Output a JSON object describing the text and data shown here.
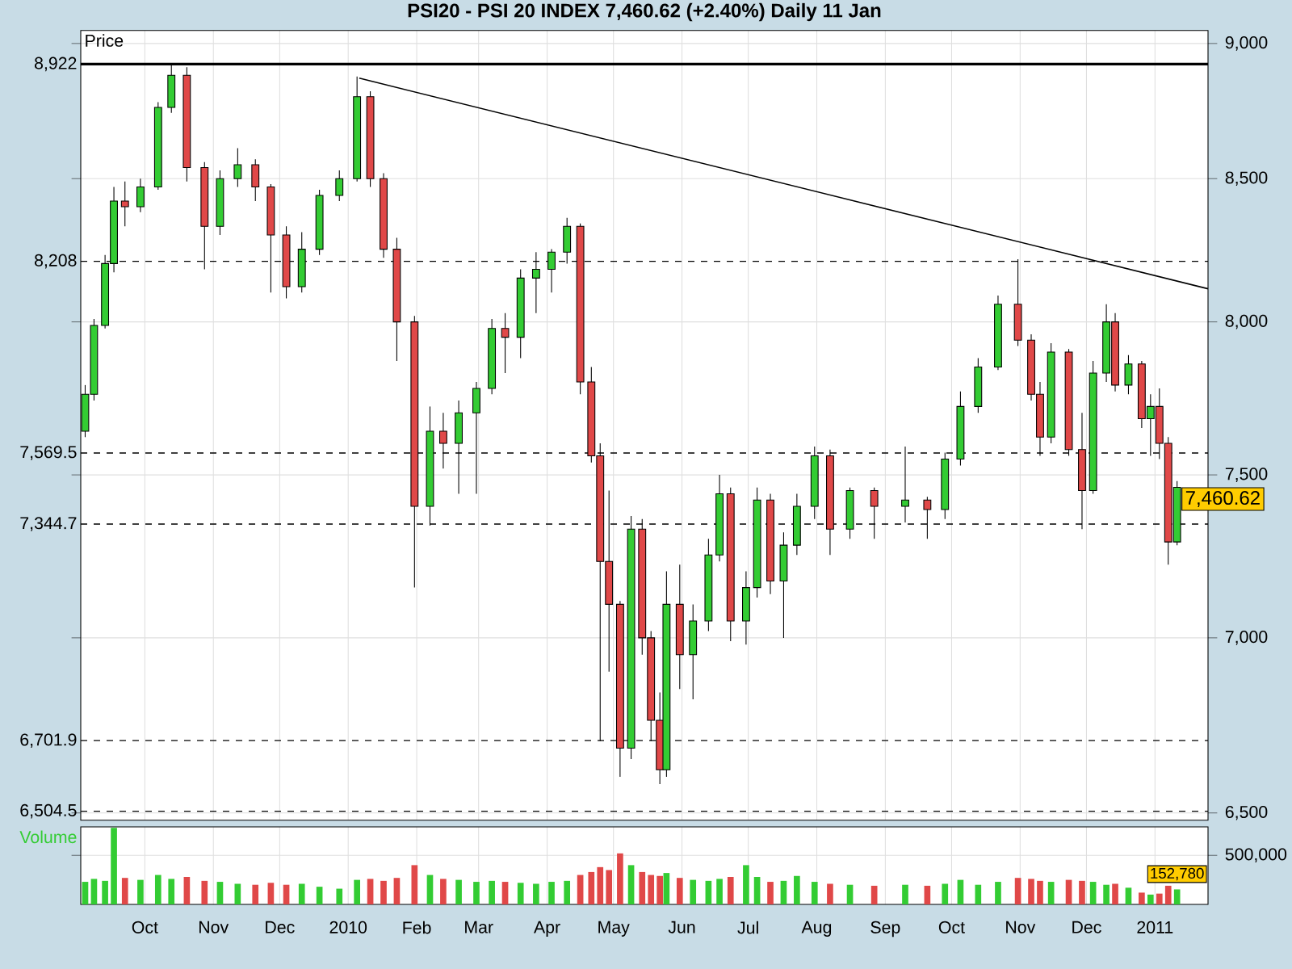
{
  "chart_data": [
    {
      "type": "candlestick",
      "title": "PSI20 - PSI 20 INDEX    7,460.62 (+2.40%)    Daily  11 Jan",
      "ylabel": "Price",
      "x": [
        "2009-09-04",
        "2009-09-08",
        "2009-09-13",
        "2009-09-17",
        "2009-09-22",
        "2009-09-29",
        "2009-10-07",
        "2009-10-13",
        "2009-10-20",
        "2009-10-28",
        "2009-11-04",
        "2009-11-12",
        "2009-11-20",
        "2009-11-27",
        "2009-12-04",
        "2009-12-11",
        "2009-12-19",
        "2009-12-28",
        "2010-01-05",
        "2010-01-11",
        "2010-01-17",
        "2010-01-23",
        "2010-01-31",
        "2010-02-07",
        "2010-02-13",
        "2010-02-20",
        "2010-02-28",
        "2010-03-07",
        "2010-03-13",
        "2010-03-20",
        "2010-03-27",
        "2010-04-03",
        "2010-04-10",
        "2010-04-16",
        "2010-04-21",
        "2010-04-25",
        "2010-04-29",
        "2010-05-04",
        "2010-05-09",
        "2010-05-14",
        "2010-05-18",
        "2010-05-22",
        "2010-05-25",
        "2010-05-31",
        "2010-06-06",
        "2010-06-13",
        "2010-06-18",
        "2010-06-23",
        "2010-06-30",
        "2010-07-05",
        "2010-07-11",
        "2010-07-17",
        "2010-07-23",
        "2010-07-31",
        "2010-08-07",
        "2010-08-16",
        "2010-08-27",
        "2010-09-10",
        "2010-09-20",
        "2010-09-28",
        "2010-10-05",
        "2010-10-13",
        "2010-10-22",
        "2010-10-31",
        "2010-11-06",
        "2010-11-10",
        "2010-11-15",
        "2010-11-23",
        "2010-11-29",
        "2010-12-04",
        "2010-12-10",
        "2010-12-14",
        "2010-12-20",
        "2010-12-26",
        "2010-12-30",
        "2011-01-03",
        "2011-01-07",
        "2011-01-11"
      ],
      "ohlc": [
        [
          7640,
          7790,
          7620,
          7760
        ],
        [
          7760,
          8010,
          7740,
          7990
        ],
        [
          7990,
          8230,
          7980,
          8200
        ],
        [
          8200,
          8470,
          8170,
          8420
        ],
        [
          8420,
          8490,
          8330,
          8400
        ],
        [
          8400,
          8500,
          8380,
          8470
        ],
        [
          8470,
          8780,
          8460,
          8760
        ],
        [
          8760,
          8920,
          8740,
          8880
        ],
        [
          8880,
          8910,
          8490,
          8540
        ],
        [
          8540,
          8560,
          8180,
          8330
        ],
        [
          8330,
          8530,
          8300,
          8500
        ],
        [
          8500,
          8610,
          8470,
          8550
        ],
        [
          8550,
          8570,
          8420,
          8470
        ],
        [
          8470,
          8480,
          8100,
          8300
        ],
        [
          8300,
          8330,
          8080,
          8120
        ],
        [
          8120,
          8310,
          8100,
          8250
        ],
        [
          8250,
          8460,
          8230,
          8440
        ],
        [
          8440,
          8530,
          8420,
          8500
        ],
        [
          8500,
          8875,
          8490,
          8800
        ],
        [
          8800,
          8820,
          8470,
          8500
        ],
        [
          8500,
          8520,
          8220,
          8250
        ],
        [
          8250,
          8290,
          7870,
          8000
        ],
        [
          8000,
          8020,
          7150,
          7400
        ],
        [
          7400,
          7720,
          7340,
          7640
        ],
        [
          7640,
          7700,
          7520,
          7600
        ],
        [
          7600,
          7740,
          7440,
          7700
        ],
        [
          7700,
          7800,
          7440,
          7780
        ],
        [
          7780,
          8010,
          7760,
          7980
        ],
        [
          7980,
          8030,
          7830,
          7950
        ],
        [
          7950,
          8180,
          7880,
          8150
        ],
        [
          8150,
          8240,
          8030,
          8180
        ],
        [
          8180,
          8250,
          8100,
          8240
        ],
        [
          8240,
          8360,
          8200,
          8330
        ],
        [
          8330,
          8340,
          7760,
          7800
        ],
        [
          7800,
          7850,
          7540,
          7560
        ],
        [
          7560,
          7600,
          6700,
          7230
        ],
        [
          7230,
          7450,
          6900,
          7100
        ],
        [
          7100,
          7110,
          6600,
          6680
        ],
        [
          6680,
          7370,
          6650,
          7330
        ],
        [
          7330,
          7360,
          6950,
          7000
        ],
        [
          7000,
          7020,
          6700,
          6760
        ],
        [
          6760,
          6840,
          6580,
          6620
        ],
        [
          6620,
          7200,
          6600,
          7100
        ],
        [
          7100,
          7220,
          6850,
          6950
        ],
        [
          6950,
          7100,
          6820,
          7050
        ],
        [
          7050,
          7300,
          7020,
          7250
        ],
        [
          7250,
          7500,
          7230,
          7440
        ],
        [
          7440,
          7460,
          6990,
          7050
        ],
        [
          7050,
          7200,
          6980,
          7150
        ],
        [
          7150,
          7460,
          7120,
          7420
        ],
        [
          7420,
          7440,
          7130,
          7170
        ],
        [
          7170,
          7320,
          7000,
          7280
        ],
        [
          7280,
          7440,
          7250,
          7400
        ],
        [
          7400,
          7590,
          7360,
          7560
        ],
        [
          7560,
          7580,
          7250,
          7330
        ],
        [
          7330,
          7460,
          7300,
          7450
        ],
        [
          7450,
          7460,
          7300,
          7400
        ],
        [
          7400,
          7590,
          7350,
          7420
        ],
        [
          7420,
          7430,
          7300,
          7390
        ],
        [
          7390,
          7570,
          7360,
          7550
        ],
        [
          7550,
          7770,
          7530,
          7720
        ],
        [
          7720,
          7880,
          7700,
          7850
        ],
        [
          7850,
          8090,
          7840,
          8060
        ],
        [
          8060,
          8215,
          7920,
          7940
        ],
        [
          7940,
          7960,
          7740,
          7760
        ],
        [
          7760,
          7800,
          7560,
          7620
        ],
        [
          7620,
          7930,
          7600,
          7900
        ],
        [
          7900,
          7910,
          7560,
          7580
        ],
        [
          7580,
          7700,
          7330,
          7450
        ],
        [
          7450,
          7870,
          7440,
          7830
        ],
        [
          7830,
          8060,
          7800,
          8000
        ],
        [
          8000,
          8030,
          7770,
          7790
        ],
        [
          7790,
          7890,
          7760,
          7860
        ],
        [
          7860,
          7870,
          7650,
          7680
        ],
        [
          7680,
          7760,
          7560,
          7720
        ],
        [
          7720,
          7780,
          7550,
          7600
        ],
        [
          7600,
          7620,
          7220,
          7290
        ],
        [
          7290,
          7480,
          7280,
          7460.62
        ]
      ],
      "colors": [
        "#33cc33",
        "#33cc33",
        "#33cc33",
        "#33cc33",
        "#e04848",
        "#33cc33",
        "#33cc33",
        "#33cc33",
        "#e04848",
        "#e04848",
        "#33cc33",
        "#33cc33",
        "#e04848",
        "#e04848",
        "#e04848",
        "#33cc33",
        "#33cc33",
        "#33cc33",
        "#33cc33",
        "#e04848",
        "#e04848",
        "#e04848",
        "#e04848",
        "#33cc33",
        "#e04848",
        "#33cc33",
        "#33cc33",
        "#33cc33",
        "#e04848",
        "#33cc33",
        "#33cc33",
        "#33cc33",
        "#33cc33",
        "#e04848",
        "#e04848",
        "#e04848",
        "#e04848",
        "#e04848",
        "#33cc33",
        "#e04848",
        "#e04848",
        "#e04848",
        "#33cc33",
        "#e04848",
        "#33cc33",
        "#33cc33",
        "#33cc33",
        "#e04848",
        "#33cc33",
        "#33cc33",
        "#e04848",
        "#33cc33",
        "#33cc33",
        "#33cc33",
        "#e04848",
        "#33cc33",
        "#e04848",
        "#33cc33",
        "#e04848",
        "#33cc33",
        "#33cc33",
        "#33cc33",
        "#33cc33",
        "#e04848",
        "#e04848",
        "#e04848",
        "#33cc33",
        "#e04848",
        "#e04848",
        "#33cc33",
        "#33cc33",
        "#e04848",
        "#33cc33",
        "#e04848",
        "#33cc33",
        "#e04848",
        "#e04848",
        "#33cc33"
      ],
      "series": [
        {
          "type": "line",
          "x": [
            "2010-01-06",
            "2011-01-25"
          ],
          "values": [
            8869,
            8113
          ],
          "color": "#000000"
        }
      ],
      "ref_lines": [
        {
          "axis": "y",
          "value": 8922,
          "label": "8,922",
          "line_style": "solid"
        },
        {
          "axis": "y",
          "value": 8208,
          "label": "8,208",
          "line_style": "dashed"
        },
        {
          "axis": "y",
          "value": 7569.5,
          "label": "7,569.5",
          "line_style": "dashed"
        },
        {
          "axis": "y",
          "value": 7344.7,
          "label": "7,344.7",
          "line_style": "dashed"
        },
        {
          "axis": "y",
          "value": 6701.9,
          "label": "6,701.9",
          "line_style": "dashed"
        },
        {
          "axis": "y",
          "value": 6504.5,
          "label": "6,504.5",
          "line_style": "dashed"
        }
      ],
      "annotations": [
        {
          "text": "7,460.62",
          "x": "2011-01-11",
          "y": 7460.62
        }
      ],
      "log": "y",
      "xlim": [
        "2009-09-02",
        "2011-01-25"
      ],
      "ylim": [
        6480,
        9050
      ],
      "xticks": [
        "2009-10-01",
        "2009-11-01",
        "2009-12-01",
        "2010-01-01",
        "2010-02-01",
        "2010-03-01",
        "2010-04-01",
        "2010-05-01",
        "2010-06-01",
        "2010-07-01",
        "2010-08-01",
        "2010-09-01",
        "2010-10-01",
        "2010-11-01",
        "2010-12-01",
        "2011-01-01"
      ],
      "yticks": [
        {
          "value": 6500,
          "label": "6,500"
        },
        {
          "value": 7000,
          "label": "7,000"
        },
        {
          "value": 7500,
          "label": "7,500"
        },
        {
          "value": 8000,
          "label": "8,000"
        },
        {
          "value": 8500,
          "label": "8,500"
        },
        {
          "value": 9000,
          "label": "9,000"
        }
      ],
      "grid": true,
      "tick_labels": "y"
    },
    {
      "type": "bar",
      "title": "Volume",
      "x": [
        "2009-09-04",
        "2009-09-08",
        "2009-09-13",
        "2009-09-17",
        "2009-09-22",
        "2009-09-29",
        "2009-10-07",
        "2009-10-13",
        "2009-10-20",
        "2009-10-28",
        "2009-11-04",
        "2009-11-12",
        "2009-11-20",
        "2009-11-27",
        "2009-12-04",
        "2009-12-11",
        "2009-12-19",
        "2009-12-28",
        "2010-01-05",
        "2010-01-11",
        "2010-01-17",
        "2010-01-23",
        "2010-01-31",
        "2010-02-07",
        "2010-02-13",
        "2010-02-20",
        "2010-02-28",
        "2010-03-07",
        "2010-03-13",
        "2010-03-20",
        "2010-03-27",
        "2010-04-03",
        "2010-04-10",
        "2010-04-16",
        "2010-04-21",
        "2010-04-25",
        "2010-04-29",
        "2010-05-04",
        "2010-05-09",
        "2010-05-14",
        "2010-05-18",
        "2010-05-22",
        "2010-05-25",
        "2010-05-31",
        "2010-06-06",
        "2010-06-13",
        "2010-06-18",
        "2010-06-23",
        "2010-06-30",
        "2010-07-05",
        "2010-07-11",
        "2010-07-17",
        "2010-07-23",
        "2010-07-31",
        "2010-08-07",
        "2010-08-16",
        "2010-08-27",
        "2010-09-10",
        "2010-09-20",
        "2010-09-28",
        "2010-10-05",
        "2010-10-13",
        "2010-10-22",
        "2010-10-31",
        "2010-11-06",
        "2010-11-10",
        "2010-11-15",
        "2010-11-23",
        "2010-11-29",
        "2010-12-04",
        "2010-12-10",
        "2010-12-14",
        "2010-12-20",
        "2010-12-26",
        "2010-12-30",
        "2011-01-03",
        "2011-01-07",
        "2011-01-11"
      ],
      "values": [
        230000,
        260000,
        240000,
        780000,
        270000,
        250000,
        300000,
        260000,
        280000,
        240000,
        230000,
        210000,
        200000,
        220000,
        200000,
        210000,
        180000,
        160000,
        250000,
        260000,
        240000,
        270000,
        400000,
        300000,
        260000,
        250000,
        230000,
        240000,
        230000,
        220000,
        210000,
        230000,
        240000,
        300000,
        330000,
        380000,
        350000,
        520000,
        400000,
        330000,
        300000,
        290000,
        320000,
        270000,
        250000,
        240000,
        260000,
        280000,
        400000,
        280000,
        230000,
        240000,
        290000,
        230000,
        210000,
        200000,
        190000,
        200000,
        190000,
        210000,
        250000,
        200000,
        230000,
        270000,
        260000,
        240000,
        230000,
        250000,
        240000,
        230000,
        200000,
        210000,
        170000,
        120000,
        100000,
        110000,
        190000,
        152780
      ],
      "value_labels": [
        null,
        null,
        null,
        null,
        null,
        null,
        null,
        null,
        null,
        null,
        null,
        null,
        null,
        null,
        null,
        null,
        null,
        null,
        null,
        null,
        null,
        null,
        null,
        null,
        null,
        null,
        null,
        null,
        null,
        null,
        null,
        null,
        null,
        null,
        null,
        null,
        null,
        null,
        null,
        null,
        null,
        null,
        null,
        null,
        null,
        null,
        null,
        null,
        null,
        null,
        null,
        null,
        null,
        null,
        null,
        null,
        null,
        null,
        null,
        null,
        null,
        null,
        null,
        null,
        null,
        null,
        null,
        null,
        null,
        null,
        null,
        null,
        null,
        null,
        null,
        null,
        null,
        "152,780"
      ],
      "colors": [
        "#33cc33",
        "#33cc33",
        "#33cc33",
        "#33cc33",
        "#e04848",
        "#33cc33",
        "#33cc33",
        "#33cc33",
        "#e04848",
        "#e04848",
        "#33cc33",
        "#33cc33",
        "#e04848",
        "#e04848",
        "#e04848",
        "#33cc33",
        "#33cc33",
        "#33cc33",
        "#33cc33",
        "#e04848",
        "#e04848",
        "#e04848",
        "#e04848",
        "#33cc33",
        "#e04848",
        "#33cc33",
        "#33cc33",
        "#33cc33",
        "#e04848",
        "#33cc33",
        "#33cc33",
        "#33cc33",
        "#33cc33",
        "#e04848",
        "#e04848",
        "#e04848",
        "#e04848",
        "#e04848",
        "#33cc33",
        "#e04848",
        "#e04848",
        "#e04848",
        "#33cc33",
        "#e04848",
        "#33cc33",
        "#33cc33",
        "#33cc33",
        "#e04848",
        "#33cc33",
        "#33cc33",
        "#e04848",
        "#33cc33",
        "#33cc33",
        "#33cc33",
        "#e04848",
        "#33cc33",
        "#e04848",
        "#33cc33",
        "#e04848",
        "#33cc33",
        "#33cc33",
        "#33cc33",
        "#33cc33",
        "#e04848",
        "#e04848",
        "#e04848",
        "#33cc33",
        "#e04848",
        "#e04848",
        "#33cc33",
        "#33cc33",
        "#e04848",
        "#33cc33",
        "#e04848",
        "#33cc33",
        "#e04848",
        "#e04848",
        "#33cc33"
      ],
      "xlim": [
        "2009-09-02",
        "2011-01-25"
      ],
      "ylim": [
        0,
        790000
      ],
      "xticks": [
        {
          "value": "2009-10-01",
          "label": "Oct"
        },
        {
          "value": "2009-11-01",
          "label": "Nov"
        },
        {
          "value": "2009-12-01",
          "label": "Dec"
        },
        {
          "value": "2010-01-01",
          "label": "2010"
        },
        {
          "value": "2010-02-01",
          "label": "Feb"
        },
        {
          "value": "2010-03-01",
          "label": "Mar"
        },
        {
          "value": "2010-04-01",
          "label": "Apr"
        },
        {
          "value": "2010-05-01",
          "label": "May"
        },
        {
          "value": "2010-06-01",
          "label": "Jun"
        },
        {
          "value": "2010-07-01",
          "label": "Jul"
        },
        {
          "value": "2010-08-01",
          "label": "Aug"
        },
        {
          "value": "2010-09-01",
          "label": "Sep"
        },
        {
          "value": "2010-10-01",
          "label": "Oct"
        },
        {
          "value": "2010-11-01",
          "label": "Nov"
        },
        {
          "value": "2010-12-01",
          "label": "Dec"
        },
        {
          "value": "2011-01-01",
          "label": "2011"
        }
      ],
      "yticks": [
        {
          "value": 500000,
          "label": "500,000"
        }
      ],
      "grid": true
    }
  ]
}
